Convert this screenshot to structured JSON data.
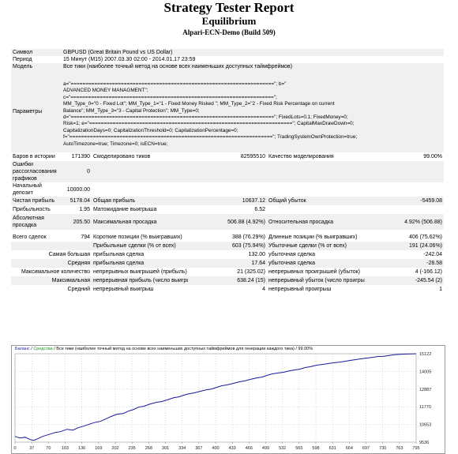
{
  "header": {
    "title": "Strategy Tester Report",
    "subtitle": "Equilibrium",
    "build": "Alpari-ECN-Demo (Build 509)"
  },
  "info": {
    "symbol_label": "Символ",
    "symbol_value": "GBPUSD (Great Britain Pound vs US Dollar)",
    "period_label": "Период",
    "period_value": "15 Минут (M15) 2007.03.30 02:00 - 2014.01.17 23:59",
    "model_label": "Модель",
    "model_value": "Все тики (наиболее точный метод на основе всех наименьших доступных таймфреймов)",
    "params_label": "Параметры",
    "params_lines": [
      "a=\"=====================================================================\"; b=\"",
      "ADVANCED MONEY MANAGMENT\";",
      "c=\"=====================================================================\";",
      "MM_Type_0=\"0 - Fixed Lot\"; MM_Type_1=\"1 - Fixed Money Risked \"; MM_Type_2=\"2 - Fixed Risk Percentage on current",
      "Balance\"; MM_Type_3=\"3 - Capital Protection\"; MM_Type=0;",
      "d=\"=====================================================================\"; FixedLots=0.1; FixedMoney=0;",
      "Risk=1; e=\"=====================================================================\"; CapitalMaxDrawDown=0;",
      "CapitalizationDays=0; CapitalizationThreshold=0; CapitalizationPercentage=0;",
      "f=\"=====================================================================\"; TradingSystemOwnProtection=true;",
      "AutoTimezone=true; Timezone=0; isECN=true;"
    ]
  },
  "stats": {
    "bars_label": "Баров в истории",
    "bars_value": "171390",
    "ticks_label": "Смоделировано тиков",
    "ticks_value": "82595510",
    "quality_label": "Качество моделирования",
    "quality_value": "99.00%",
    "mismatch_label": "Ошибки рассогласования графиков",
    "mismatch_value": "0",
    "deposit_label": "Начальный депозит",
    "deposit_value": "10000.00",
    "netprofit_label": "Чистая прибыль",
    "netprofit_value": "5178.04",
    "grossprofit_label": "Общая прибыль",
    "grossprofit_value": "10637.12",
    "grossloss_label": "Общий убыток",
    "grossloss_value": "-5459.08",
    "pf_label": "Прибыльность",
    "pf_value": "1.95",
    "expected_label": "Матожидание выигрыша",
    "expected_value": "6.52",
    "absdd_label": "Абсолютная просадка",
    "absdd_value": "205.50",
    "maxdd_label": "Максимальная просадка",
    "maxdd_value": "506.88 (4.92%)",
    "reldd_label": "Относительная просадка",
    "reldd_value": "4.92% (506.88)",
    "total_label": "Всего сделок",
    "total_value": "794",
    "short_label": "Короткие позиции (% выигравших)",
    "short_value": "388 (76.29%)",
    "long_label": "Длинные позиции (% выигравших)",
    "long_value": "406 (75.62%)",
    "profit_trades_label": "Прибыльные сделки (% от всех)",
    "profit_trades_value": "603 (75.94%)",
    "loss_trades_label": "Убыточные сделки (% от всех)",
    "loss_trades_value": "191 (24.06%)",
    "largest_pre": "Самая большая",
    "largest_profit_label": "прибыльная сделка",
    "largest_profit_value": "132.00",
    "largest_loss_label": "убыточная сделка",
    "largest_loss_value": "-242.04",
    "average_pre": "Средняя",
    "average_profit_label": "прибыльная сделка",
    "average_profit_value": "17.64",
    "average_loss_label": "убыточная сделка",
    "average_loss_value": "-28.58",
    "maxcount_pre": "Максимальное количество",
    "maxcons_wins_label": "непрерывных выигрышей (прибыль)",
    "maxcons_wins_value": "21 (325.02)",
    "maxcons_losses_label": "непрерывных проигрышей (убыток)",
    "maxcons_losses_value": "4 (-166.12)",
    "maximal_pre": "Максимальная",
    "maxcons_profit_label": "непрерывная прибыль (число выигрышей)",
    "maxcons_profit_value": "638.24 (15)",
    "maxcons_loss_label": "непрерывный убыток (число проигрышей)",
    "maxcons_loss_value": "-245.54 (2)",
    "avgcons_pre": "Средний",
    "avgcons_wins_label": "непрерывный выигрыш",
    "avgcons_wins_value": "4",
    "avgcons_losses_label": "непрерывный проигрыш",
    "avgcons_losses_value": "1"
  },
  "chart_data": {
    "type": "line",
    "legend_balance": "Баланс",
    "legend_sep": " / ",
    "legend_equity": "Средства",
    "legend_rest": " / Все тики (наиболее точный метод на основе всех наименьших доступных таймфреймов для генерации каждого тика) / 99.00%",
    "x_ticks": [
      "0",
      "37",
      "70",
      "103",
      "136",
      "169",
      "202",
      "235",
      "268",
      "301",
      "334",
      "367",
      "400",
      "433",
      "466",
      "499",
      "532",
      "565",
      "598",
      "631",
      "664",
      "697",
      "730",
      "763",
      "795"
    ],
    "y_ticks": [
      "15122",
      "14005",
      "12887",
      "11770",
      "10653",
      "9536"
    ],
    "ylim": [
      9536,
      15122
    ],
    "xlim": [
      0,
      795
    ],
    "colors": {
      "balance": "#1a1a9c",
      "equity": "#1e8f1e"
    },
    "series": [
      {
        "name": "Баланс",
        "x": [
          0,
          10,
          20,
          30,
          37,
          45,
          55,
          65,
          70,
          80,
          90,
          103,
          115,
          125,
          136,
          150,
          160,
          169,
          180,
          190,
          202,
          215,
          225,
          235,
          245,
          255,
          268,
          280,
          290,
          301,
          315,
          325,
          334,
          345,
          355,
          367,
          380,
          390,
          400,
          410,
          420,
          433,
          445,
          455,
          466,
          480,
          490,
          499,
          510,
          520,
          532,
          545,
          555,
          565,
          575,
          585,
          598,
          610,
          620,
          631,
          645,
          655,
          664,
          675,
          685,
          697,
          710,
          720,
          730,
          740,
          750,
          763,
          775,
          785,
          795
        ],
        "y": [
          9900,
          9800,
          9850,
          9700,
          9650,
          9750,
          9900,
          10000,
          10050,
          10150,
          10200,
          10350,
          10300,
          10450,
          10550,
          10700,
          10800,
          10850,
          11000,
          11150,
          11300,
          11350,
          11500,
          11600,
          11750,
          11800,
          11950,
          12050,
          12100,
          12200,
          12350,
          12400,
          12500,
          12600,
          12650,
          12750,
          12850,
          12900,
          13000,
          13100,
          13150,
          13250,
          13350,
          13400,
          13500,
          13600,
          13650,
          13750,
          13850,
          13900,
          13950,
          14050,
          14100,
          14150,
          14250,
          14300,
          14400,
          14450,
          14500,
          14550,
          14600,
          14650,
          14700,
          14750,
          14800,
          14850,
          14900,
          14950,
          14950,
          15000,
          15050,
          15080,
          15100,
          15110,
          15122
        ]
      }
    ]
  }
}
